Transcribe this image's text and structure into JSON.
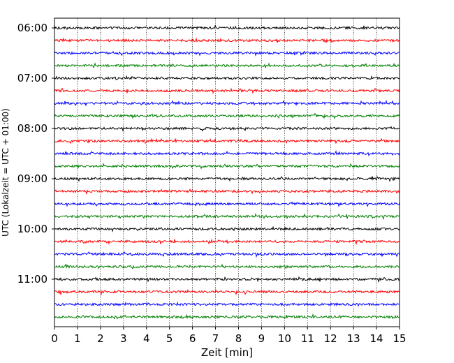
{
  "chart_data": {
    "type": "line",
    "subtype": "helicorder",
    "title": "",
    "xlabel": "Zeit  [min]",
    "ylabel": "UTC (Lokalzeit = UTC + 01:00)",
    "xlim": [
      0,
      15
    ],
    "x_ticks": [
      "0",
      "1",
      "2",
      "3",
      "4",
      "5",
      "6",
      "7",
      "8",
      "9",
      "10",
      "11",
      "12",
      "13",
      "14",
      "15"
    ],
    "y_tick_labels": [
      "06:00",
      "07:00",
      "08:00",
      "09:00",
      "10:00",
      "11:00"
    ],
    "trace_start_times_utc": [
      "06:00",
      "06:15",
      "06:30",
      "06:45",
      "07:00",
      "07:15",
      "07:30",
      "07:45",
      "08:00",
      "08:15",
      "08:30",
      "08:45",
      "09:00",
      "09:15",
      "09:30",
      "09:45",
      "10:00",
      "10:15",
      "10:30",
      "10:45",
      "11:00",
      "11:15",
      "11:30",
      "11:45"
    ],
    "trace_minutes_per_line": 15,
    "color_cycle": [
      "#000000",
      "#ff0000",
      "#0000ff",
      "#008000"
    ],
    "grid": {
      "x_dotted": true
    }
  }
}
